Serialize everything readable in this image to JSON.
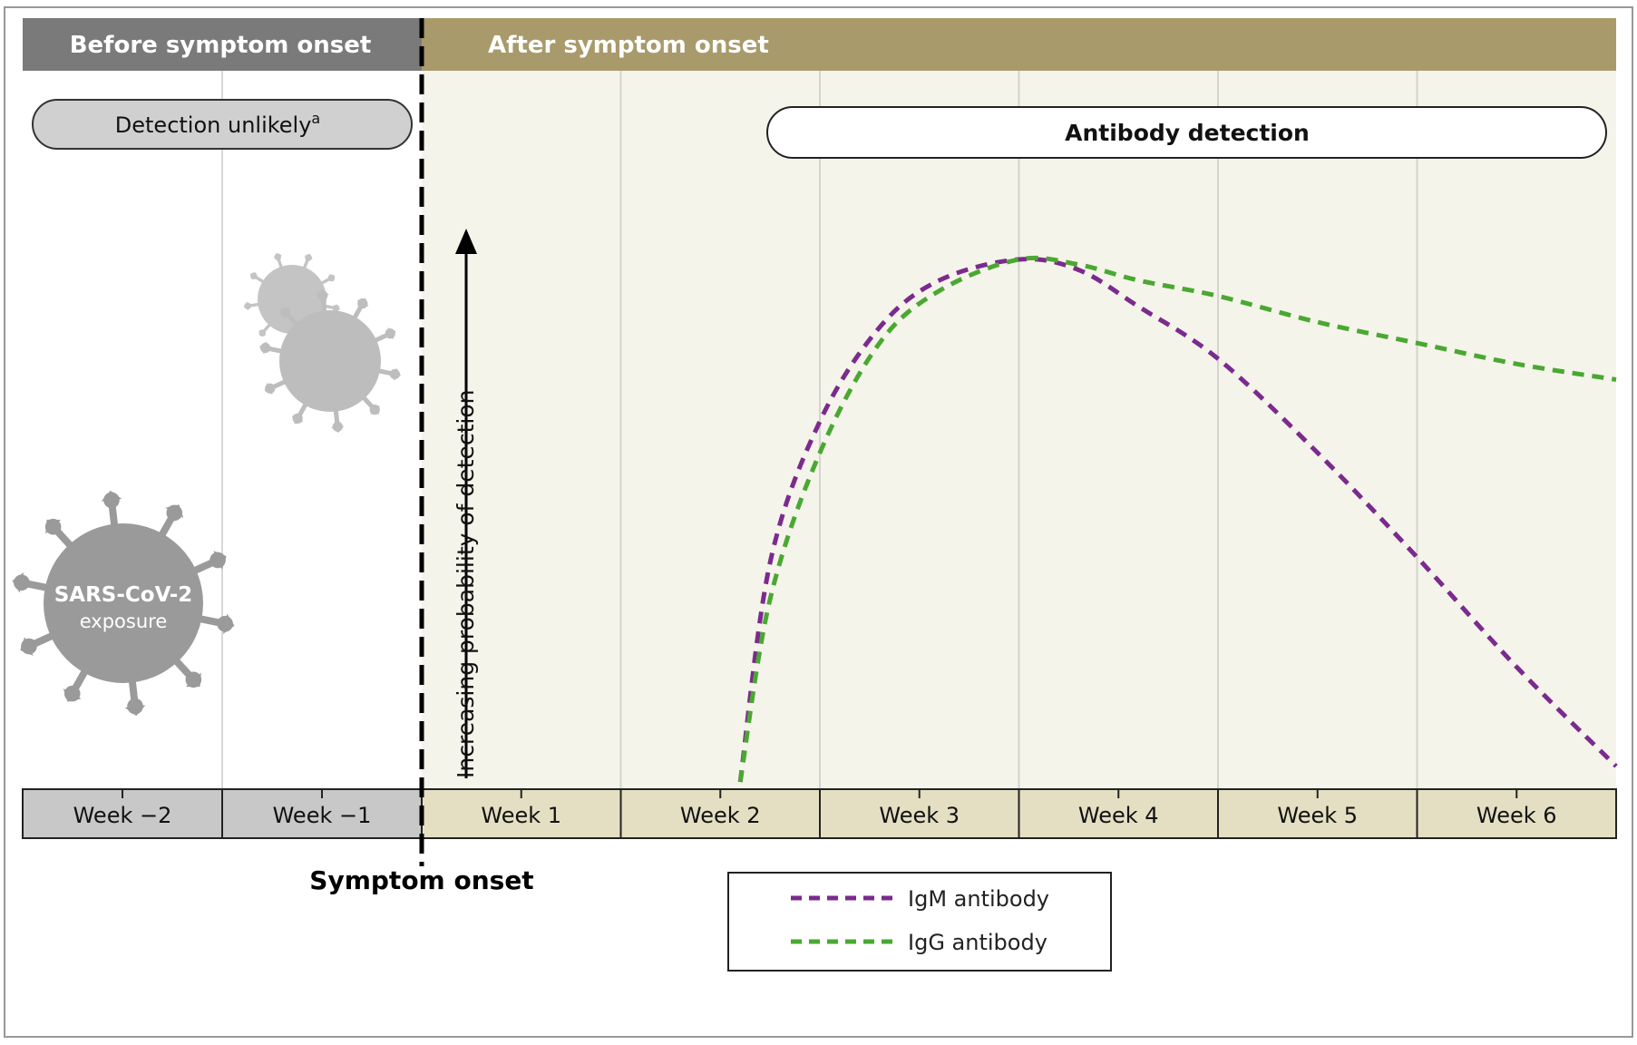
{
  "header": {
    "before_label": "Before symptom onset",
    "after_label": "After symptom onset"
  },
  "pills": {
    "detection_unlikely": "Detection unlikely",
    "detection_unlikely_footnote": "a",
    "antibody_detection": "Antibody detection"
  },
  "virus": {
    "label_line1": "SARS-CoV-2",
    "label_line2": "exposure"
  },
  "y_axis_label": "Increasing probability of detection",
  "symptom_onset_label": "Symptom onset",
  "colors": {
    "before_header": "#7a7a7a",
    "after_header": "#a89a6a",
    "after_bg": "#f5f4ea",
    "before_week": "#c8c8c8",
    "after_week": "#e4dfc2",
    "virus_dark": "#9a9a9a",
    "virus_light": "#c4c4c4",
    "igm": "#7b2a8e",
    "igg": "#4aa832"
  },
  "chart_data": {
    "type": "line",
    "title": "",
    "xlabel": "",
    "ylabel": "Increasing probability of detection",
    "categories": [
      "Week −2",
      "Week −1",
      "Week 1",
      "Week 2",
      "Week 3",
      "Week 4",
      "Week 5",
      "Week 6"
    ],
    "xlim": [
      -2,
      6
    ],
    "ylim": [
      0,
      1
    ],
    "series": [
      {
        "name": "IgM antibody",
        "color": "#7b2a8e",
        "x": [
          1.6,
          1.75,
          2.0,
          2.3,
          2.6,
          3.0,
          3.3,
          3.6,
          4.0,
          4.5,
          5.0,
          5.5,
          6.0
        ],
        "y": [
          0.0,
          0.42,
          0.69,
          0.87,
          0.96,
          1.0,
          0.98,
          0.91,
          0.81,
          0.63,
          0.43,
          0.22,
          0.03
        ]
      },
      {
        "name": "IgG antibody",
        "color": "#4aa832",
        "x": [
          1.6,
          1.75,
          2.0,
          2.3,
          2.6,
          3.0,
          3.3,
          3.6,
          4.0,
          4.5,
          5.0,
          5.5,
          6.0
        ],
        "y": [
          0.0,
          0.35,
          0.63,
          0.84,
          0.94,
          1.0,
          0.99,
          0.96,
          0.93,
          0.88,
          0.84,
          0.8,
          0.77
        ]
      }
    ],
    "legend": {
      "position": "bottom-center",
      "entries": [
        "IgM antibody",
        "IgG antibody"
      ]
    }
  }
}
